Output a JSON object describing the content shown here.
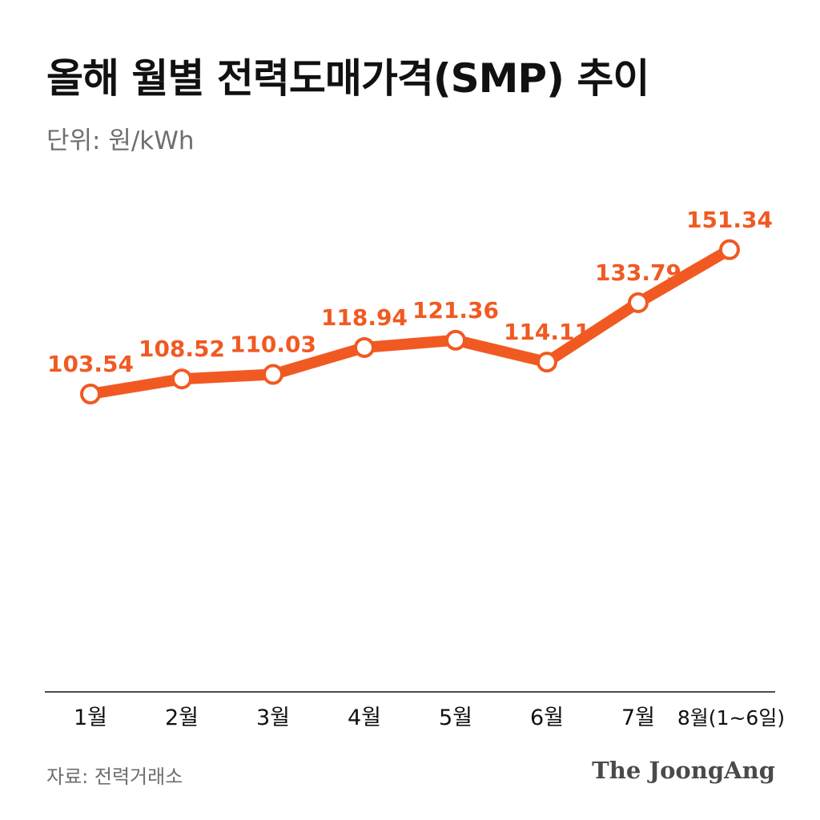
{
  "header": {
    "title": "올해 월별 전력도매가격(SMP) 추이",
    "unit": "단위: 원/kWh"
  },
  "footer": {
    "source": "자료: 전력거래소",
    "brand": "The JoongAng"
  },
  "colors": {
    "line": "#f05a22",
    "marker_fill": "#ffffff",
    "text": "#111111",
    "muted": "#6e6e6e"
  },
  "chart_data": {
    "type": "line",
    "title": "올해 월별 전력도매가격(SMP) 추이",
    "ylabel": "단위: 원/kWh",
    "categories": [
      "1월",
      "2월",
      "3월",
      "4월",
      "5월",
      "6월",
      "7월",
      "8월(1~6일)"
    ],
    "series": [
      {
        "values": [
          103.54,
          108.52,
          110.03,
          118.94,
          121.36,
          114.11,
          133.79,
          151.34
        ],
        "labels": [
          "103.54",
          "108.52",
          "110.03",
          "118.94",
          "121.36",
          "114.11",
          "133.79",
          "151.34"
        ]
      }
    ],
    "ylim": [
      0,
      170
    ],
    "grid": false,
    "legend": "none"
  }
}
